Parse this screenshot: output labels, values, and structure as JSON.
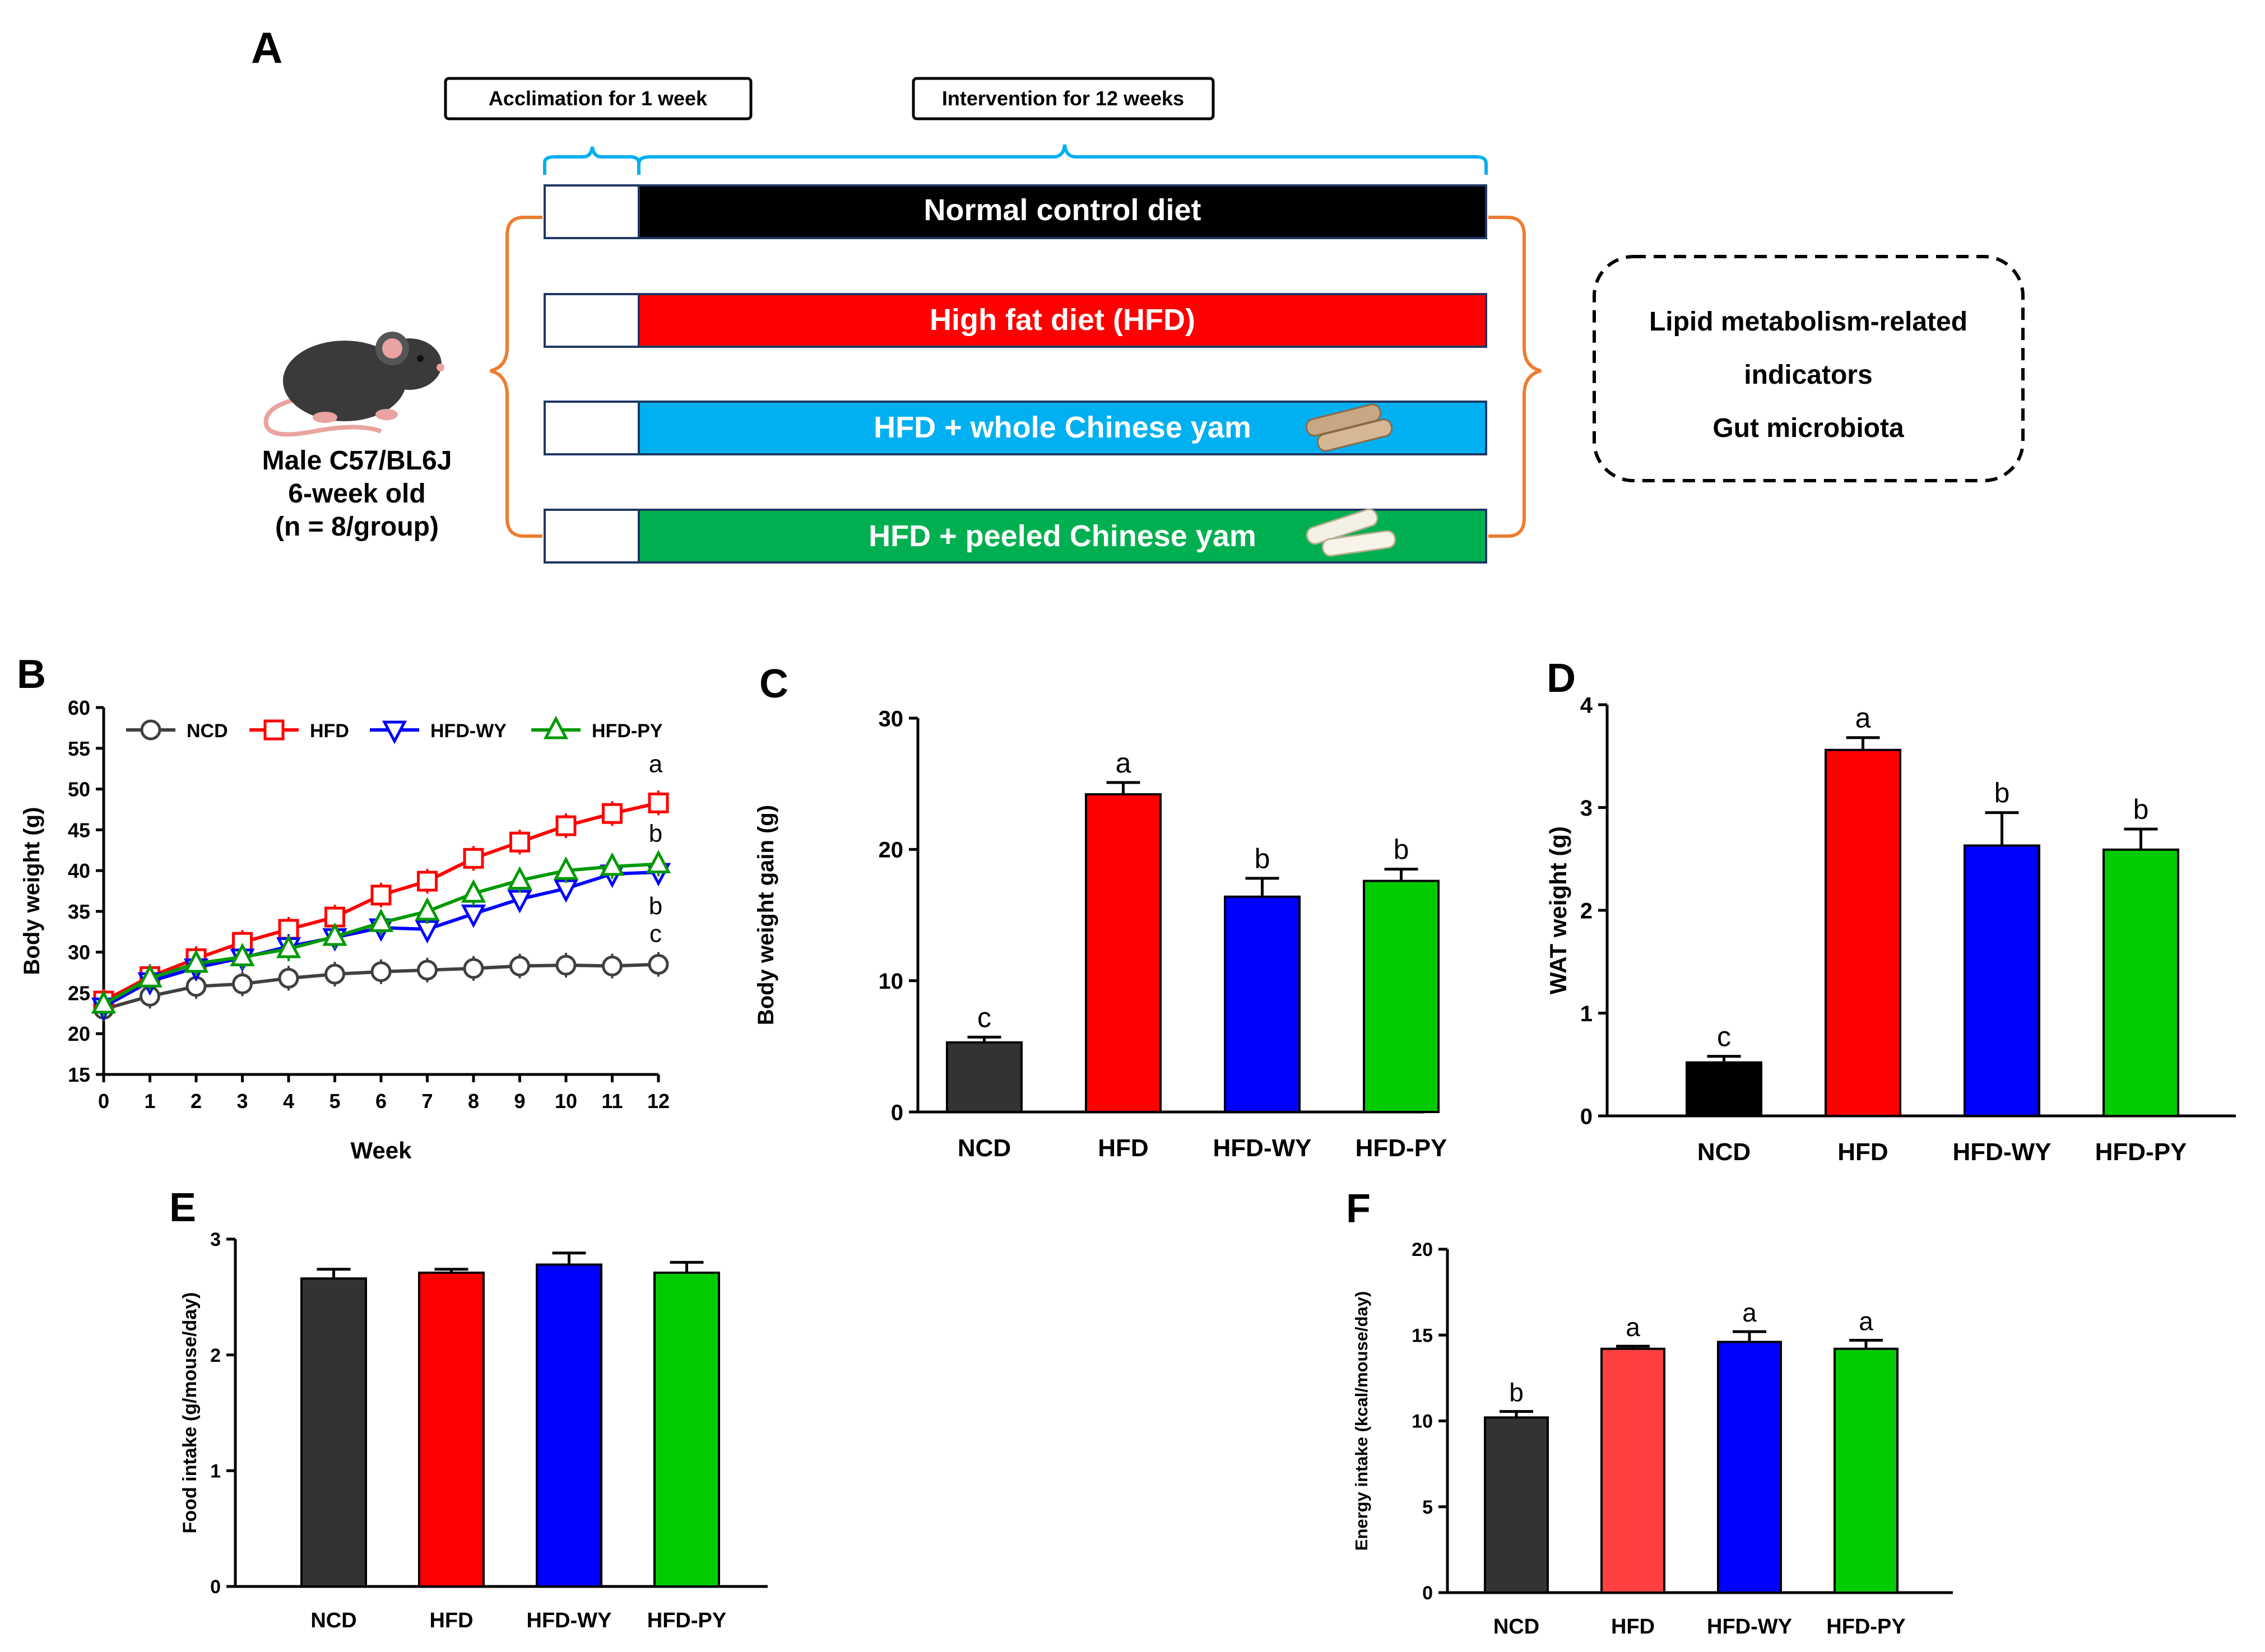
{
  "panel_a": {
    "letter": "A",
    "acclimation_label": "Acclimation for 1 week",
    "intervention_label": "Intervention for 12 weeks",
    "diet_bars": [
      {
        "label": "Normal control diet",
        "color": "#000000"
      },
      {
        "label": "High fat diet (HFD)",
        "color": "#ff0000"
      },
      {
        "label": "HFD + whole Chinese yam",
        "color": "#00b0f0"
      },
      {
        "label": "HFD + peeled Chinese yam",
        "color": "#00b050"
      }
    ],
    "mouse_lines": [
      "Male C57/BL6J",
      "6-week old",
      "(n = 8/group)"
    ],
    "outcome_lines": [
      "Lipid metabolism-related",
      "indicators",
      "Gut microbiota"
    ],
    "bracket_color": "#ed7d31",
    "timeline_bracket_color": "#00b0f0"
  },
  "chart_data": [
    {
      "id": "B",
      "letter": "B",
      "type": "line",
      "xlabel": "Week",
      "ylabel": "Body weight (g)",
      "x": [
        0,
        1,
        2,
        3,
        4,
        5,
        6,
        7,
        8,
        9,
        10,
        11,
        12
      ],
      "ylim": [
        15,
        60
      ],
      "yticks": [
        15,
        20,
        25,
        30,
        35,
        40,
        45,
        50,
        55,
        60
      ],
      "legend_position": "top",
      "series": [
        {
          "name": "NCD",
          "color": "#404040",
          "marker": "circle",
          "values": [
            23.0,
            24.6,
            25.8,
            26.1,
            26.8,
            27.3,
            27.6,
            27.8,
            28.0,
            28.3,
            28.4,
            28.3,
            28.5
          ]
        },
        {
          "name": "HFD",
          "color": "#ff0000",
          "marker": "square",
          "values": [
            24.0,
            27.0,
            29.2,
            31.2,
            32.8,
            34.3,
            37.0,
            38.7,
            41.5,
            43.5,
            45.5,
            47.0,
            48.3
          ]
        },
        {
          "name": "HFD-WY",
          "color": "#0000ff",
          "marker": "triangle-down",
          "values": [
            23.3,
            26.4,
            28.1,
            29.3,
            30.7,
            31.8,
            33.0,
            32.8,
            34.7,
            36.5,
            37.8,
            39.6,
            39.8
          ]
        },
        {
          "name": "HFD-PY",
          "color": "#009900",
          "marker": "triangle-up",
          "values": [
            23.6,
            26.8,
            28.6,
            29.4,
            30.4,
            31.9,
            33.6,
            35.0,
            37.2,
            38.8,
            40.0,
            40.5,
            40.8
          ]
        }
      ],
      "end_letters": [
        {
          "series": "HFD",
          "text": "a"
        },
        {
          "series": "HFD-PY",
          "text": "b"
        },
        {
          "series": "HFD-WY",
          "text": "b"
        },
        {
          "series": "NCD",
          "text": "c"
        }
      ]
    },
    {
      "id": "C",
      "letter": "C",
      "type": "bar",
      "ylabel": "Body weight gain (g)",
      "categories": [
        "NCD",
        "HFD",
        "HFD-WY",
        "HFD-PY"
      ],
      "values": [
        5.3,
        24.2,
        16.4,
        17.6
      ],
      "errors": [
        0.4,
        0.9,
        1.4,
        0.9
      ],
      "sig_letters": [
        "c",
        "a",
        "b",
        "b"
      ],
      "colors": [
        "#333333",
        "#ff0000",
        "#0000ff",
        "#00cc00"
      ],
      "ylim": [
        0,
        30
      ],
      "yticks": [
        0,
        10,
        20,
        30
      ]
    },
    {
      "id": "D",
      "letter": "D",
      "type": "bar",
      "ylabel": "WAT weight (g)",
      "categories": [
        "NCD",
        "HFD",
        "HFD-WY",
        "HFD-PY"
      ],
      "values": [
        0.52,
        3.56,
        2.63,
        2.59
      ],
      "errors": [
        0.06,
        0.12,
        0.32,
        0.2
      ],
      "sig_letters": [
        "c",
        "a",
        "b",
        "b"
      ],
      "colors": [
        "#000000",
        "#ff0000",
        "#0000ff",
        "#00cc00"
      ],
      "ylim": [
        0,
        4
      ],
      "yticks": [
        0,
        1,
        2,
        3,
        4
      ]
    },
    {
      "id": "E",
      "letter": "E",
      "type": "bar",
      "ylabel": "Food intake (g/mouse/day)",
      "categories": [
        "NCD",
        "HFD",
        "HFD-WY",
        "HFD-PY"
      ],
      "values": [
        2.66,
        2.71,
        2.78,
        2.71
      ],
      "errors": [
        0.08,
        0.03,
        0.1,
        0.09
      ],
      "sig_letters": [
        "",
        "",
        "",
        ""
      ],
      "colors": [
        "#333333",
        "#ff0000",
        "#0000ff",
        "#00cc00"
      ],
      "ylim": [
        0,
        3
      ],
      "yticks": [
        0,
        1,
        2,
        3
      ]
    },
    {
      "id": "F",
      "letter": "F",
      "type": "bar",
      "ylabel": "Energy intake (kcal/mouse/day)",
      "categories": [
        "NCD",
        "HFD",
        "HFD-WY",
        "HFD-PY"
      ],
      "values": [
        10.2,
        14.2,
        14.6,
        14.2
      ],
      "errors": [
        0.35,
        0.15,
        0.6,
        0.5
      ],
      "sig_letters": [
        "b",
        "a",
        "a",
        "a"
      ],
      "colors": [
        "#333333",
        "#ff4040",
        "#0000ff",
        "#00cc00"
      ],
      "ylim": [
        0,
        20
      ],
      "yticks": [
        0,
        5,
        10,
        15,
        20
      ]
    }
  ]
}
